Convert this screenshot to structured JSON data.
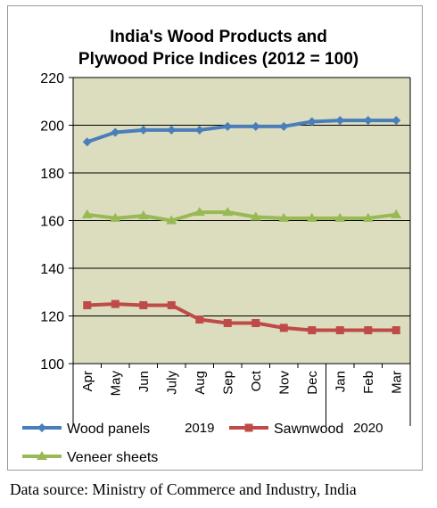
{
  "chart_data": {
    "type": "line",
    "title_lines": [
      "India's Wood Products and",
      "Plywood Price Indices (2012 = 100)"
    ],
    "categories": [
      "Apr",
      "May",
      "Jun",
      "July",
      "Aug",
      "Sep",
      "Oct",
      "Nov",
      "Dec",
      "Jan",
      "Feb",
      "Mar"
    ],
    "year_labels": [
      {
        "label": "2019",
        "from": "Apr",
        "to": "Dec"
      },
      {
        "label": "2020",
        "from": "Jan",
        "to": "Mar"
      }
    ],
    "series": [
      {
        "name": "Wood panels",
        "color": "#4a7ebb",
        "marker": "diamond",
        "values": [
          193,
          197,
          198,
          198,
          198,
          199.5,
          199.5,
          199.5,
          201.5,
          202,
          202,
          202
        ]
      },
      {
        "name": "Sawnwood",
        "color": "#be4b48",
        "marker": "square",
        "values": [
          124.5,
          125,
          124.5,
          124.5,
          118.5,
          117,
          117,
          115,
          114,
          114,
          114,
          114
        ]
      },
      {
        "name": "Veneer sheets",
        "color": "#98b954",
        "marker": "triangle",
        "values": [
          162.5,
          161,
          162,
          160,
          163.5,
          163.5,
          161.5,
          161,
          161,
          161,
          161,
          162.5
        ]
      }
    ],
    "ylim": [
      100,
      220
    ],
    "yticks": [
      100,
      120,
      140,
      160,
      180,
      200,
      220
    ],
    "grid": true,
    "plot_background": "#dcdcbe",
    "legend_position": "bottom"
  },
  "source_note": "Data source: Ministry of Commerce and Industry, India"
}
